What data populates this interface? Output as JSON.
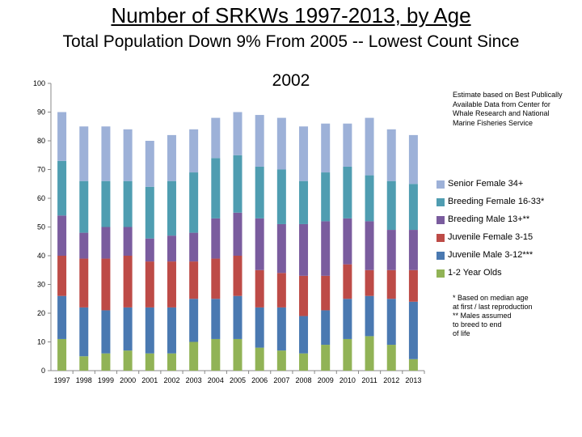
{
  "title": "Number of SRKWs 1997-2013, by Age",
  "subtitle": "Total Population Down 9% From 2005 -- Lowest Count Since",
  "subtitle_line2": "2002",
  "source_note": "Estimate based on Best Publically Available Data from Center for Whale Research and National Marine Fisheries Service",
  "footnote_lines": [
    "* Based on median age",
    "at first / last reproduction",
    "** Males assumed",
    "to breed to end",
    "of life"
  ],
  "colors": {
    "senior_female": "#9DB1D8",
    "breeding_female": "#4F9DB1",
    "breeding_male": "#7A5C9E",
    "juvenile_female": "#BD4B47",
    "juvenile_male": "#4A79B1",
    "yearlings": "#91B356"
  },
  "chart_data": {
    "type": "bar",
    "stacked": true,
    "title": "Number of SRKWs 1997-2013, by Age",
    "subtitle": "Total Population Down 9% From 2005 -- Lowest Count Since 2002",
    "categories": [
      "1997",
      "1998",
      "1999",
      "2000",
      "2001",
      "2002",
      "2003",
      "2004",
      "2005",
      "2006",
      "2007",
      "2008",
      "2009",
      "2010",
      "2011",
      "2012",
      "2013"
    ],
    "ylim": [
      0,
      100
    ],
    "yticks": [
      0,
      10,
      20,
      30,
      40,
      50,
      60,
      70,
      80,
      90,
      100
    ],
    "grid": false,
    "legend_position": "right",
    "series": [
      {
        "name": "1-2 Year Olds",
        "color_key": "yearlings",
        "values": [
          11,
          5,
          6,
          7,
          6,
          6,
          10,
          11,
          11,
          8,
          7,
          6,
          9,
          11,
          12,
          9,
          4
        ]
      },
      {
        "name": "Juvenile Male 3-12***",
        "color_key": "juvenile_male",
        "values": [
          15,
          17,
          15,
          15,
          16,
          16,
          15,
          14,
          15,
          14,
          15,
          13,
          12,
          14,
          14,
          16,
          20
        ]
      },
      {
        "name": "Juvenile Female 3-15",
        "color_key": "juvenile_female",
        "values": [
          14,
          17,
          18,
          18,
          16,
          16,
          13,
          14,
          14,
          13,
          12,
          14,
          12,
          12,
          9,
          10,
          11
        ]
      },
      {
        "name": "Breeding Male 13+**",
        "color_key": "breeding_male",
        "values": [
          14,
          9,
          11,
          10,
          8,
          9,
          10,
          14,
          15,
          18,
          17,
          18,
          19,
          16,
          17,
          14,
          14
        ]
      },
      {
        "name": "Breeding Female 16-33*",
        "color_key": "breeding_female",
        "values": [
          19,
          18,
          16,
          16,
          18,
          19,
          21,
          21,
          20,
          18,
          19,
          15,
          17,
          18,
          16,
          17,
          16
        ]
      },
      {
        "name": "Senior Female 34+",
        "color_key": "senior_female",
        "values": [
          17,
          19,
          19,
          18,
          16,
          16,
          15,
          14,
          15,
          18,
          18,
          19,
          17,
          15,
          20,
          18,
          17
        ]
      }
    ]
  },
  "legend_order": [
    "Senior Female 34+",
    "Breeding Female 16-33*",
    "Breeding Male 13+**",
    "Juvenile Female 3-15",
    "Juvenile Male 3-12***",
    "1-2 Year Olds"
  ]
}
